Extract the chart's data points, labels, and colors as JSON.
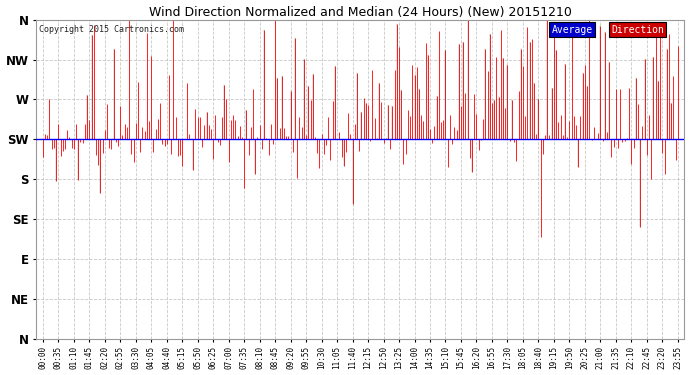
{
  "title": "Wind Direction Normalized and Median (24 Hours) (New) 20151210",
  "copyright": "Copyright 2015 Cartronics.com",
  "background_color": "#ffffff",
  "plot_bg_color": "#ffffff",
  "grid_color": "#bbbbbb",
  "y_labels": [
    "N",
    "NW",
    "W",
    "SW",
    "S",
    "SE",
    "E",
    "NE",
    "N"
  ],
  "y_ticks": [
    360,
    315,
    270,
    225,
    180,
    135,
    90,
    45,
    0
  ],
  "y_min": 0,
  "y_max": 360,
  "average_direction": 225,
  "x_tick_labels": [
    "00:00",
    "00:35",
    "01:10",
    "01:45",
    "02:20",
    "02:55",
    "03:30",
    "04:05",
    "04:40",
    "05:15",
    "05:50",
    "06:25",
    "07:00",
    "07:35",
    "08:10",
    "08:45",
    "09:20",
    "09:55",
    "10:30",
    "11:05",
    "11:40",
    "12:15",
    "12:50",
    "13:25",
    "14:00",
    "14:35",
    "15:10",
    "15:45",
    "16:20",
    "16:55",
    "17:30",
    "18:05",
    "18:40",
    "19:15",
    "19:50",
    "20:25",
    "21:00",
    "21:35",
    "22:10",
    "22:45",
    "23:20",
    "23:55"
  ],
  "line_color_red": "#ff0000",
  "line_color_black": "#222222",
  "avg_line_color": "#0000ff",
  "legend_avg_bg": "#0000cc",
  "legend_dir_bg": "#cc0000",
  "legend_text_color": "#ffffff",
  "seed": 42,
  "n_points": 288,
  "base_direction": 225
}
